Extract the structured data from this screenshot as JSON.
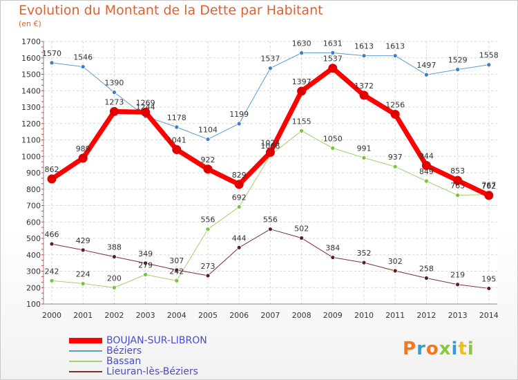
{
  "title": "Evolution du Montant de la Dette par Habitant",
  "subtitle": "(en €)",
  "logo": {
    "text": "Proxiti",
    "colors": [
      "#f07820",
      "#3a9ad8",
      "#f07820",
      "#8cc63f",
      "#3a9ad8",
      "#e8c020",
      "#8cc63f"
    ]
  },
  "chart_data": {
    "type": "line",
    "x": [
      "2000",
      "2001",
      "2002",
      "2003",
      "2004",
      "2005",
      "2006",
      "2007",
      "2008",
      "2009",
      "2010",
      "2011",
      "2012",
      "2013",
      "2014"
    ],
    "ylim": [
      100,
      1700
    ],
    "yticks": [
      100,
      200,
      300,
      400,
      500,
      600,
      700,
      800,
      900,
      1000,
      1100,
      1200,
      1300,
      1400,
      1500,
      1600,
      1700
    ],
    "grid": true,
    "legend_position": "bottom-left",
    "series": [
      {
        "name": "Béziers",
        "color": "#5b9bd5",
        "marker": "#3a7fc1",
        "width": 1,
        "values": [
          1570,
          1546,
          1390,
          1244,
          1178,
          1104,
          1199,
          1537,
          1630,
          1631,
          1613,
          1613,
          1497,
          1529,
          1558
        ],
        "labels": [
          "1570",
          "1546",
          "1390",
          "1244",
          "1178",
          "1104",
          "1199",
          "1537",
          "1630",
          "1631",
          "1613",
          "1613",
          "1497",
          "1529",
          "1558"
        ]
      },
      {
        "name": "Bassan",
        "color": "#9ed36a",
        "marker": "#7ac143",
        "width": 1,
        "values": [
          242,
          224,
          200,
          279,
          242,
          556,
          692,
          1006,
          1155,
          1050,
          991,
          937,
          849,
          763,
          767
        ],
        "labels": [
          "242",
          "224",
          "200",
          "279",
          "242",
          "556",
          "692",
          "1006",
          "1155",
          "1050",
          "991",
          "937",
          "849",
          "763",
          "767"
        ]
      },
      {
        "name": "Lieuran-lès-Béziers",
        "color": "#7a2e2e",
        "marker": "#5e1f1f",
        "width": 1,
        "values": [
          466,
          429,
          388,
          349,
          307,
          273,
          444,
          556,
          502,
          384,
          352,
          302,
          258,
          219,
          195
        ],
        "labels": [
          "466",
          "429",
          "388",
          "349",
          "307",
          "273",
          "444",
          "556",
          "502",
          "384",
          "352",
          "302",
          "258",
          "219",
          "195"
        ]
      },
      {
        "name": "BOUJAN-SUR-LIBRON",
        "color": "#ff0000",
        "marker": "#e00000",
        "width": 7,
        "values": [
          862,
          989,
          1273,
          1269,
          1041,
          922,
          829,
          1024,
          1397,
          1537,
          1372,
          1256,
          944,
          853,
          762
        ],
        "labels": [
          "862",
          "989",
          "1273",
          "1269",
          "1041",
          "922",
          "829",
          "1024",
          "1397",
          "1537",
          "1372",
          "1256",
          "944",
          "853",
          "762"
        ]
      }
    ],
    "legend": [
      {
        "name": "BOUJAN-SUR-LIBRON",
        "color": "#ff0000",
        "thick": true
      },
      {
        "name": "Béziers",
        "color": "#5b9bd5",
        "thick": false
      },
      {
        "name": "Bassan",
        "color": "#9ed36a",
        "thick": false
      },
      {
        "name": "Lieuran-lès-Béziers",
        "color": "#7a2e2e",
        "thick": false
      }
    ]
  }
}
